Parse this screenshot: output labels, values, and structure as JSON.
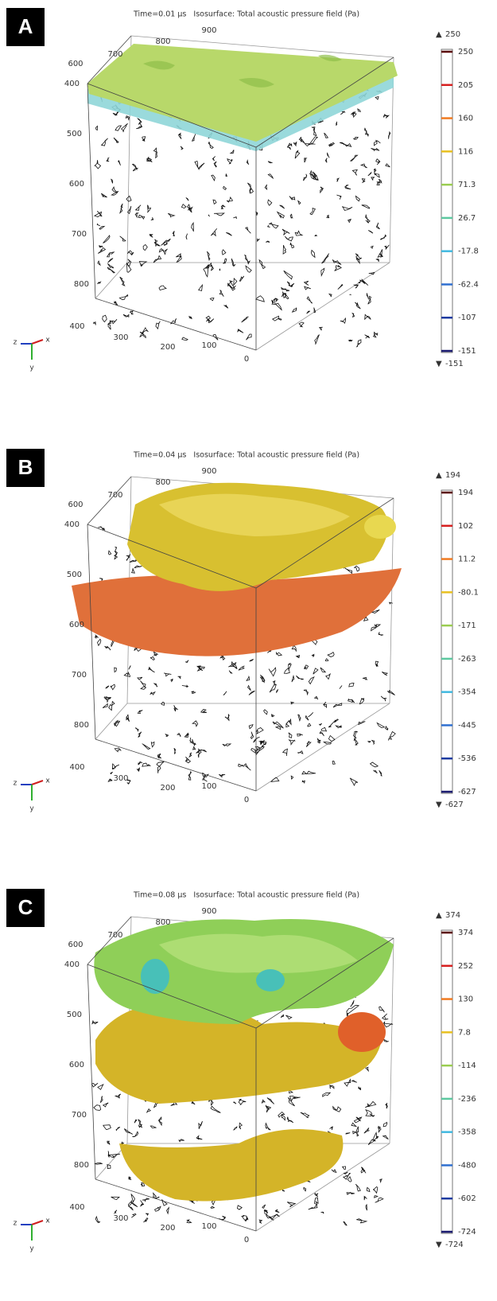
{
  "panels": [
    {
      "label": "A",
      "title": "Time=0.01 µs   Isosurface: Total acoustic pressure field (Pa)",
      "axis_top": [
        600,
        700,
        800,
        900
      ],
      "axis_left": [
        400,
        500,
        600,
        700,
        800
      ],
      "axis_bottom": [
        400,
        300,
        200,
        100,
        0
      ],
      "colorbar_max": 250,
      "colorbar_min": -151,
      "colorbar_ticks": [
        250,
        205,
        160,
        116,
        71.3,
        26.7,
        -17.8,
        -62.4,
        -107,
        -151
      ],
      "triad": [
        "z",
        "x",
        "y"
      ]
    },
    {
      "label": "B",
      "title": "Time=0.04 µs   Isosurface: Total acoustic pressure field (Pa)",
      "axis_top": [
        600,
        700,
        800,
        900
      ],
      "axis_left": [
        400,
        500,
        600,
        700,
        800
      ],
      "axis_bottom": [
        400,
        300,
        200,
        100,
        0
      ],
      "colorbar_max": 194,
      "colorbar_min": -627,
      "colorbar_ticks": [
        194,
        102,
        11.2,
        -80.1,
        -171,
        -263,
        -354,
        -445,
        -536,
        -627
      ],
      "triad": [
        "z",
        "x",
        "y"
      ]
    },
    {
      "label": "C",
      "title": "Time=0.08 µs   Isosurface: Total acoustic pressure field (Pa)",
      "axis_top": [
        600,
        700,
        800,
        900
      ],
      "axis_left": [
        400,
        500,
        600,
        700,
        800
      ],
      "axis_bottom": [
        400,
        300,
        200,
        100,
        0
      ],
      "colorbar_max": 374,
      "colorbar_min": -724,
      "colorbar_ticks": [
        374,
        252,
        130,
        7.8,
        -114,
        -236,
        -358,
        -480,
        -602,
        -724
      ],
      "triad": [
        "z",
        "x",
        "y"
      ]
    }
  ]
}
